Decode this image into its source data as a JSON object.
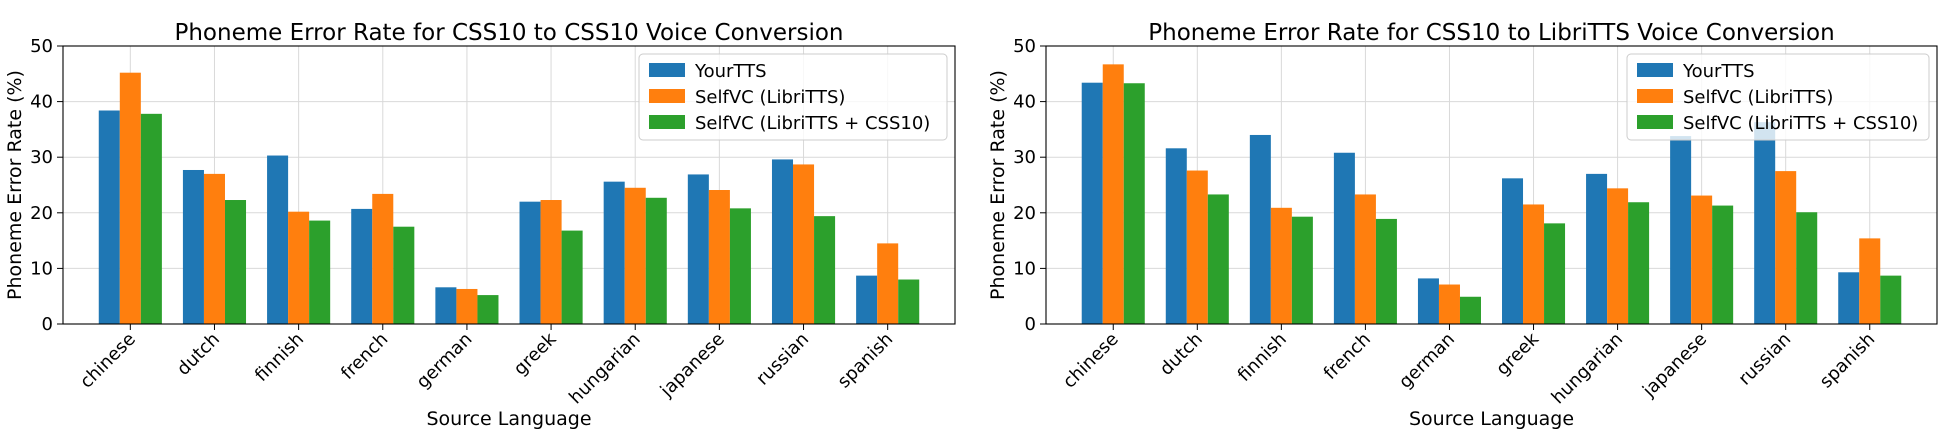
{
  "colors": {
    "YourTTS": "#1f77b4",
    "SelfVC (LibriTTS)": "#ff7f0e",
    "SelfVC (LibriTTS + CSS10)": "#2ca02c"
  },
  "chart_data": [
    {
      "type": "bar",
      "title": "Phoneme Error Rate for CSS10 to CSS10 Voice Conversion",
      "xlabel": "Source Language",
      "ylabel": "Phoneme Error Rate (%)",
      "ylim": [
        0,
        50
      ],
      "yticks": [
        0,
        10,
        20,
        30,
        40,
        50
      ],
      "grid": true,
      "legend_position": "top-right",
      "categories": [
        "chinese",
        "dutch",
        "finnish",
        "french",
        "german",
        "greek",
        "hungarian",
        "japanese",
        "russian",
        "spanish"
      ],
      "series": [
        {
          "name": "YourTTS",
          "values": [
            38.4,
            27.7,
            30.3,
            20.7,
            6.6,
            22.0,
            25.6,
            26.9,
            29.6,
            8.7
          ]
        },
        {
          "name": "SelfVC (LibriTTS)",
          "values": [
            45.2,
            27.0,
            20.2,
            23.4,
            6.3,
            22.3,
            24.5,
            24.1,
            28.7,
            14.5
          ]
        },
        {
          "name": "SelfVC (LibriTTS + CSS10)",
          "values": [
            37.8,
            22.3,
            18.6,
            17.5,
            5.2,
            16.8,
            22.7,
            20.8,
            19.4,
            8.0
          ]
        }
      ]
    },
    {
      "type": "bar",
      "title": "Phoneme Error Rate for CSS10 to LibriTTS Voice Conversion",
      "xlabel": "Source Language",
      "ylabel": "Phoneme Error Rate (%)",
      "ylim": [
        0,
        50
      ],
      "yticks": [
        0,
        10,
        20,
        30,
        40,
        50
      ],
      "grid": true,
      "legend_position": "top-right",
      "categories": [
        "chinese",
        "dutch",
        "finnish",
        "french",
        "german",
        "greek",
        "hungarian",
        "japanese",
        "russian",
        "spanish"
      ],
      "series": [
        {
          "name": "YourTTS",
          "values": [
            43.4,
            31.6,
            34.0,
            30.8,
            8.2,
            26.2,
            27.0,
            33.8,
            36.3,
            9.3
          ]
        },
        {
          "name": "SelfVC (LibriTTS)",
          "values": [
            46.7,
            27.6,
            20.9,
            23.3,
            7.1,
            21.5,
            24.4,
            23.1,
            27.5,
            15.4
          ]
        },
        {
          "name": "SelfVC (LibriTTS + CSS10)",
          "values": [
            43.3,
            23.3,
            19.3,
            18.9,
            4.9,
            18.1,
            21.9,
            21.3,
            20.1,
            8.7
          ]
        }
      ]
    }
  ]
}
